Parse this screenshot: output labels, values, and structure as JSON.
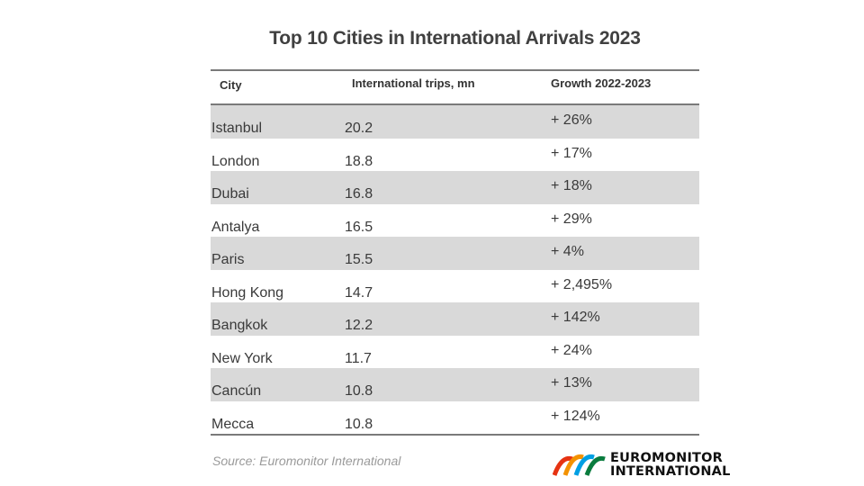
{
  "chart_data": {
    "type": "table",
    "title": "Top 10 Cities in International Arrivals 2023",
    "columns": [
      "City",
      "International trips, mn",
      "Growth 2022-2023"
    ],
    "rows": [
      {
        "city": "Istanbul",
        "trips": "20.2",
        "growth": "+ 26%"
      },
      {
        "city": "London",
        "trips": "18.8",
        "growth": "+ 17%"
      },
      {
        "city": "Dubai",
        "trips": "16.8",
        "growth": "+ 18%"
      },
      {
        "city": "Antalya",
        "trips": "16.5",
        "growth": "+ 29%"
      },
      {
        "city": "Paris",
        "trips": "15.5",
        "growth": "+ 4%"
      },
      {
        "city": "Hong Kong",
        "trips": "14.7",
        "growth": "+ 2,495%"
      },
      {
        "city": "Bangkok",
        "trips": "12.2",
        "growth": "+ 142%"
      },
      {
        "city": "New York",
        "trips": "11.7",
        "growth": "+ 24%"
      },
      {
        "city": "Cancún",
        "trips": "10.8",
        "growth": "+ 13%"
      },
      {
        "city": "Mecca",
        "trips": "10.8",
        "growth": "+ 124%"
      }
    ],
    "source": "Source: Euromonitor International"
  },
  "logo": {
    "line1": "EUROMONITOR",
    "line2": "INTERNATIONAL",
    "colors": [
      "#e63312",
      "#f39200",
      "#009fe3",
      "#0a7c3e"
    ]
  },
  "colors": {
    "shaded_row": "#d9d9d9",
    "rule": "#7a7a7a"
  }
}
